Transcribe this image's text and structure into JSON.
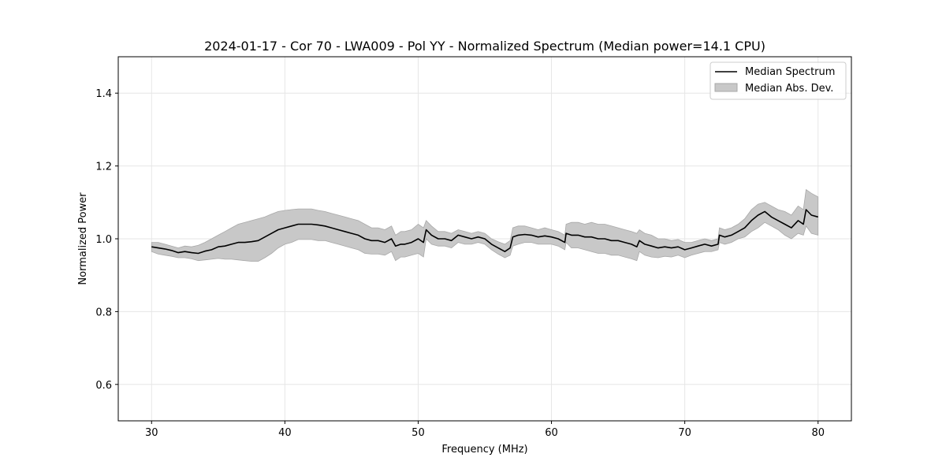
{
  "chart_data": {
    "type": "line",
    "title": "2024-01-17 - Cor 70 - LWA009 - Pol YY - Normalized Spectrum (Median power=14.1 CPU)",
    "xlabel": "Frequency (MHz)",
    "ylabel": "Normalized Power",
    "xlim": [
      27.5,
      82.5
    ],
    "ylim": [
      0.5,
      1.5
    ],
    "xticks": [
      30,
      40,
      50,
      60,
      70,
      80
    ],
    "yticks": [
      0.6,
      0.8,
      1.0,
      1.2,
      1.4
    ],
    "xtick_labels": [
      "30",
      "40",
      "50",
      "60",
      "70",
      "80"
    ],
    "ytick_labels": [
      "0.6",
      "0.8",
      "1.0",
      "1.2",
      "1.4"
    ],
    "grid": true,
    "legend_position": "top-right",
    "series": [
      {
        "name": "Median Spectrum",
        "color": "#000000",
        "x": [
          30,
          30.5,
          31,
          31.5,
          32,
          32.5,
          33,
          33.5,
          34,
          34.5,
          35,
          35.5,
          36,
          36.5,
          37,
          37.5,
          38,
          38.5,
          39,
          39.5,
          40,
          40.5,
          41,
          41.5,
          42,
          42.5,
          43,
          43.5,
          44,
          44.5,
          45,
          45.5,
          46,
          46.5,
          47,
          47.5,
          48,
          48.3,
          48.7,
          49,
          49.5,
          50,
          50.4,
          50.6,
          51,
          51.5,
          52,
          52.5,
          53,
          53.5,
          54,
          54.5,
          55,
          55.5,
          56,
          56.5,
          56.9,
          57.1,
          57.5,
          58,
          58.5,
          59,
          59.5,
          60,
          60.5,
          61,
          61.1,
          61.5,
          62,
          62.5,
          63,
          63.5,
          64,
          64.5,
          65,
          65.5,
          66,
          66.4,
          66.6,
          67,
          67.5,
          68,
          68.5,
          69,
          69.5,
          70,
          70.5,
          71,
          71.5,
          72,
          72.5,
          72.6,
          73,
          73.5,
          74,
          74.5,
          75,
          75.5,
          76,
          76.5,
          77,
          77.5,
          78,
          78.5,
          78.9,
          79.1,
          79.5,
          80
        ],
        "values": [
          0.978,
          0.975,
          0.972,
          0.968,
          0.962,
          0.965,
          0.962,
          0.96,
          0.966,
          0.97,
          0.978,
          0.98,
          0.985,
          0.99,
          0.99,
          0.992,
          0.995,
          1.005,
          1.015,
          1.025,
          1.03,
          1.035,
          1.04,
          1.04,
          1.04,
          1.038,
          1.035,
          1.03,
          1.025,
          1.02,
          1.015,
          1.01,
          1.0,
          0.995,
          0.995,
          0.99,
          1.0,
          0.98,
          0.985,
          0.985,
          0.99,
          1.0,
          0.99,
          1.025,
          1.01,
          1.0,
          1.0,
          0.995,
          1.01,
          1.005,
          1.0,
          1.005,
          1.0,
          0.985,
          0.975,
          0.965,
          0.975,
          1.005,
          1.01,
          1.012,
          1.01,
          1.005,
          1.008,
          1.005,
          1.0,
          0.99,
          1.015,
          1.01,
          1.01,
          1.005,
          1.005,
          1.0,
          1.0,
          0.995,
          0.995,
          0.99,
          0.985,
          0.978,
          0.995,
          0.985,
          0.98,
          0.975,
          0.978,
          0.975,
          0.978,
          0.97,
          0.975,
          0.98,
          0.985,
          0.98,
          0.985,
          1.01,
          1.005,
          1.01,
          1.02,
          1.03,
          1.05,
          1.065,
          1.075,
          1.06,
          1.05,
          1.04,
          1.03,
          1.05,
          1.04,
          1.08,
          1.065,
          1.06
        ]
      },
      {
        "name": "Median Abs. Dev.",
        "color": "#c8c8c8",
        "x": [
          30,
          30.5,
          31,
          31.5,
          32,
          32.5,
          33,
          33.5,
          34,
          34.5,
          35,
          35.5,
          36,
          36.5,
          37,
          37.5,
          38,
          38.5,
          39,
          39.5,
          40,
          40.5,
          41,
          41.5,
          42,
          42.5,
          43,
          43.5,
          44,
          44.5,
          45,
          45.5,
          46,
          46.5,
          47,
          47.5,
          48,
          48.3,
          48.7,
          49,
          49.5,
          50,
          50.4,
          50.6,
          51,
          51.5,
          52,
          52.5,
          53,
          53.5,
          54,
          54.5,
          55,
          55.5,
          56,
          56.5,
          56.9,
          57.1,
          57.5,
          58,
          58.5,
          59,
          59.5,
          60,
          60.5,
          61,
          61.1,
          61.5,
          62,
          62.5,
          63,
          63.5,
          64,
          64.5,
          65,
          65.5,
          66,
          66.4,
          66.6,
          67,
          67.5,
          68,
          68.5,
          69,
          69.5,
          70,
          70.5,
          71,
          71.5,
          72,
          72.5,
          72.6,
          73,
          73.5,
          74,
          74.5,
          75,
          75.5,
          76,
          76.5,
          77,
          77.5,
          78,
          78.5,
          78.9,
          79.1,
          79.5,
          80
        ],
        "upper": [
          0.99,
          0.99,
          0.985,
          0.98,
          0.975,
          0.98,
          0.978,
          0.982,
          0.99,
          1.0,
          1.01,
          1.02,
          1.03,
          1.04,
          1.045,
          1.05,
          1.055,
          1.06,
          1.068,
          1.075,
          1.078,
          1.08,
          1.082,
          1.082,
          1.082,
          1.078,
          1.075,
          1.07,
          1.065,
          1.06,
          1.055,
          1.05,
          1.04,
          1.03,
          1.03,
          1.025,
          1.035,
          1.01,
          1.02,
          1.02,
          1.025,
          1.04,
          1.03,
          1.05,
          1.035,
          1.02,
          1.02,
          1.015,
          1.025,
          1.02,
          1.015,
          1.02,
          1.015,
          1.0,
          0.992,
          0.985,
          0.995,
          1.03,
          1.035,
          1.035,
          1.03,
          1.025,
          1.03,
          1.025,
          1.02,
          1.01,
          1.04,
          1.045,
          1.045,
          1.04,
          1.045,
          1.04,
          1.04,
          1.035,
          1.03,
          1.025,
          1.02,
          1.015,
          1.025,
          1.015,
          1.01,
          1.0,
          1.0,
          0.995,
          0.998,
          0.99,
          0.99,
          0.995,
          1.0,
          0.995,
          1.0,
          1.03,
          1.025,
          1.03,
          1.04,
          1.055,
          1.08,
          1.095,
          1.1,
          1.09,
          1.08,
          1.075,
          1.065,
          1.09,
          1.08,
          1.135,
          1.125,
          1.115
        ],
        "lower": [
          0.965,
          0.958,
          0.955,
          0.952,
          0.948,
          0.948,
          0.945,
          0.94,
          0.942,
          0.944,
          0.946,
          0.944,
          0.944,
          0.942,
          0.94,
          0.938,
          0.938,
          0.948,
          0.96,
          0.975,
          0.985,
          0.99,
          0.998,
          0.998,
          0.998,
          0.995,
          0.995,
          0.99,
          0.985,
          0.98,
          0.975,
          0.97,
          0.96,
          0.958,
          0.958,
          0.955,
          0.965,
          0.94,
          0.95,
          0.95,
          0.955,
          0.96,
          0.95,
          1.0,
          0.985,
          0.98,
          0.98,
          0.975,
          0.99,
          0.985,
          0.985,
          0.99,
          0.985,
          0.97,
          0.958,
          0.948,
          0.955,
          0.98,
          0.985,
          0.99,
          0.99,
          0.985,
          0.985,
          0.985,
          0.98,
          0.97,
          0.99,
          0.975,
          0.975,
          0.97,
          0.965,
          0.96,
          0.96,
          0.955,
          0.955,
          0.95,
          0.945,
          0.94,
          0.965,
          0.955,
          0.95,
          0.948,
          0.952,
          0.95,
          0.955,
          0.948,
          0.955,
          0.96,
          0.965,
          0.965,
          0.97,
          0.99,
          0.985,
          0.99,
          1.0,
          1.005,
          1.02,
          1.03,
          1.045,
          1.035,
          1.025,
          1.01,
          1.0,
          1.015,
          1.01,
          1.035,
          1.015,
          1.01
        ]
      }
    ]
  }
}
